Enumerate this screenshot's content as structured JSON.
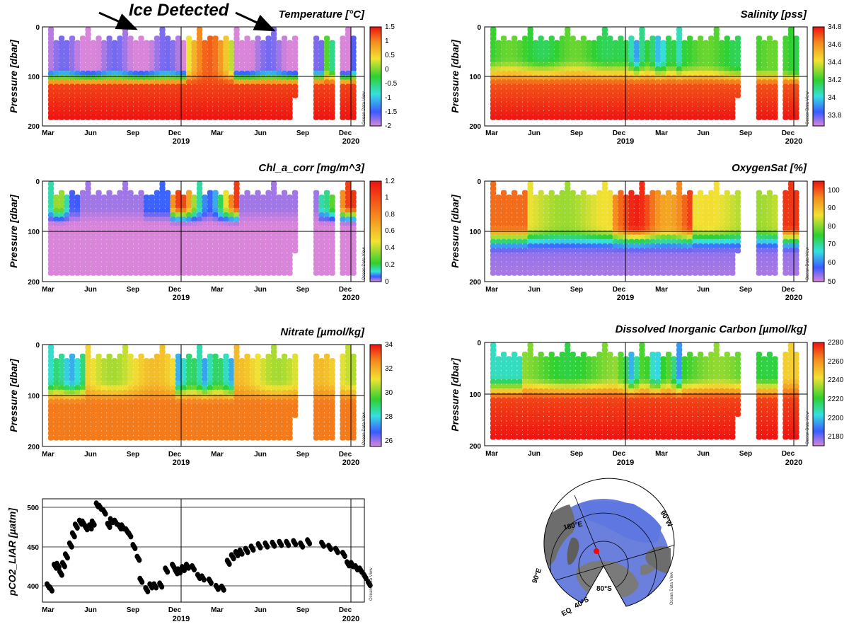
{
  "annotation": {
    "text": "Ice Detected"
  },
  "chart_data": [
    {
      "type": "heatmap",
      "title": "Temperature [°C]",
      "ylabel": "Pressure [dbar]",
      "ylim": [
        200,
        0
      ],
      "y_ticks": [
        "0",
        "100",
        "200"
      ],
      "x_ticks": [
        "Mar",
        "Jun",
        "Sep",
        "Dec",
        "Mar",
        "Jun",
        "Sep",
        "Dec"
      ],
      "x_years": [
        "2019",
        "2020"
      ],
      "colorbar": {
        "ticks": [
          "1.5",
          "1",
          "0.5",
          "0",
          "-0.5",
          "-1",
          "-1.5",
          "-2"
        ],
        "min": -2,
        "max": 1.5
      },
      "watermark": "Ocean Data View"
    },
    {
      "type": "heatmap",
      "title": "Salinity [pss]",
      "ylabel": "Pressure [dbar]",
      "ylim": [
        200,
        0
      ],
      "y_ticks": [
        "0",
        "100",
        "200"
      ],
      "x_ticks": [
        "Mar",
        "Jun",
        "Sep",
        "Dec",
        "Mar",
        "Jun",
        "Sep",
        "Dec"
      ],
      "x_years": [
        "2019",
        "2020"
      ],
      "colorbar": {
        "ticks": [
          "34.8",
          "34.6",
          "34.4",
          "34.2",
          "34",
          "33.8"
        ],
        "min": 33.7,
        "max": 34.8
      },
      "watermark": "Ocean Data View"
    },
    {
      "type": "heatmap",
      "title": "Chl_a_corr [mg/m^3]",
      "ylabel": "Pressure [dbar]",
      "ylim": [
        200,
        0
      ],
      "y_ticks": [
        "0",
        "100",
        "200"
      ],
      "x_ticks": [
        "Mar",
        "Jun",
        "Sep",
        "Dec",
        "Mar",
        "Jun",
        "Sep",
        "Dec"
      ],
      "x_years": [
        "2019",
        "2020"
      ],
      "colorbar": {
        "ticks": [
          "1.2",
          "1",
          "0.8",
          "0.6",
          "0.4",
          "0.2",
          "0"
        ],
        "min": 0,
        "max": 1.2
      },
      "watermark": "Ocean Data View"
    },
    {
      "type": "heatmap",
      "title": "OxygenSat [%]",
      "ylabel": "Pressure [dbar]",
      "ylim": [
        200,
        0
      ],
      "y_ticks": [
        "0",
        "100",
        "200"
      ],
      "x_ticks": [
        "Mar",
        "Jun",
        "Sep",
        "Dec",
        "Mar",
        "Jun",
        "Sep",
        "Dec"
      ],
      "x_years": [
        "2019",
        "2020"
      ],
      "colorbar": {
        "ticks": [
          "100",
          "90",
          "80",
          "70",
          "60",
          "50"
        ],
        "min": 50,
        "max": 100
      },
      "watermark": "Ocean Data View"
    },
    {
      "type": "heatmap",
      "title": "Nitrate [µmol/kg]",
      "ylabel": "Pressure [dbar]",
      "ylim": [
        200,
        0
      ],
      "y_ticks": [
        "0",
        "100",
        "200"
      ],
      "x_ticks": [
        "Mar",
        "Jun",
        "Sep",
        "Dec",
        "Mar",
        "Jun",
        "Sep",
        "Dec"
      ],
      "x_years": [
        "2019",
        "2020"
      ],
      "colorbar": {
        "ticks": [
          "34",
          "32",
          "30",
          "28",
          "26"
        ],
        "min": 25.5,
        "max": 34
      },
      "watermark": "Ocean Data View"
    },
    {
      "type": "heatmap",
      "title": "Dissolved Inorganic Carbon [µmol/kg]",
      "ylabel": "Pressure [dbar]",
      "ylim": [
        200,
        0
      ],
      "y_ticks": [
        "0",
        "100",
        "200"
      ],
      "x_ticks": [
        "Mar",
        "Jun",
        "Sep",
        "Dec",
        "Mar",
        "Jun",
        "Sep",
        "Dec"
      ],
      "x_years": [
        "2019",
        "2020"
      ],
      "colorbar": {
        "ticks": [
          "2280",
          "2260",
          "2240",
          "2220",
          "2200",
          "2180"
        ],
        "min": 2170,
        "max": 2280
      },
      "watermark": "Ocean Data View"
    },
    {
      "type": "scatter",
      "title": "",
      "ylabel": "pCO2_LIAR [µatm]",
      "ylim": [
        380,
        510
      ],
      "y_ticks": [
        "500",
        "450",
        "400"
      ],
      "x_ticks": [
        "Mar",
        "Jun",
        "Sep",
        "Dec",
        "Mar",
        "Jun",
        "Sep",
        "Dec"
      ],
      "x_years": [
        "2019",
        "2020"
      ],
      "watermark": "Ocean Data View",
      "series": [
        {
          "name": "pCO2_LIAR",
          "x": [
            0.0,
            0.2,
            0.5,
            0.7,
            0.9,
            1.1,
            1.3,
            1.6,
            1.8,
            2.0,
            2.3,
            2.5,
            2.7,
            3.0,
            3.2,
            3.5,
            3.7,
            4.0,
            4.3,
            4.5,
            4.8,
            5.1,
            5.3,
            5.6,
            5.8,
            6.1,
            6.4,
            6.6,
            7.0,
            7.3,
            7.6,
            8.0,
            8.4,
            8.9,
            9.1,
            9.3,
            9.6,
            9.9,
            10.3,
            10.7,
            11.0,
            11.5,
            12.0,
            12.4,
            12.8,
            13.1,
            13.4,
            13.7,
            14.1,
            14.5,
            15.0,
            15.5,
            16.0,
            16.5,
            17.0,
            17.5,
            18.0,
            18.5,
            19.5,
            20.0,
            20.5,
            21.0,
            21.3,
            21.6,
            21.9,
            22.2,
            22.5,
            22.8
          ],
          "values": [
            400,
            396,
            425,
            426,
            416,
            427,
            438,
            452,
            465,
            476,
            481,
            480,
            474,
            475,
            480,
            503,
            500,
            494,
            477,
            483,
            481,
            475,
            475,
            470,
            465,
            450,
            435,
            407,
            395,
            400,
            400,
            401,
            420,
            425,
            418,
            419,
            422,
            425,
            423,
            412,
            410,
            406,
            398,
            397,
            430,
            437,
            441,
            443,
            445,
            448,
            451,
            452,
            453,
            454,
            454,
            455,
            452,
            456,
            453,
            449,
            445,
            440,
            428,
            427,
            423,
            420,
            412,
            403
          ]
        }
      ]
    }
  ],
  "map": {
    "labels": {
      "lon180": "180°E",
      "lon90": "90°W",
      "lon90e": "90°E",
      "lat80": "80°S",
      "lat40": "40°S",
      "eq": "EQ"
    },
    "watermark": "Ocean Data View"
  }
}
